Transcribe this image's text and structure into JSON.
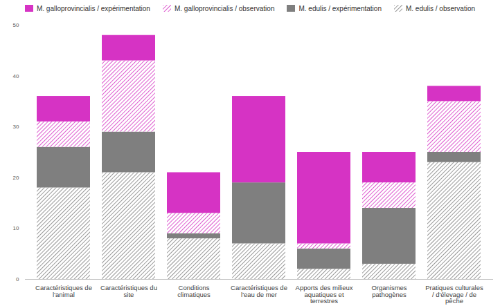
{
  "chart_data": {
    "type": "bar",
    "stacked": true,
    "categories": [
      "Caractéristiques de l'animal",
      "Caractéristiques du site",
      "Conditions climatiques",
      "Caractéristiques de l'eau de mer",
      "Apports des milieux aquatiques et terrestres",
      "Organismes pathogènes",
      "Pratiques culturales / d'élevage / de pêche"
    ],
    "series": [
      {
        "name": "M. edulis / observation",
        "color": "#7f7f7f",
        "line_style": "hatched",
        "values": [
          18,
          21,
          8,
          7,
          2,
          3,
          23
        ]
      },
      {
        "name": "M. edulis / expérimentation",
        "color": "#7f7f7f",
        "line_style": "solid",
        "values": [
          8,
          8,
          1,
          12,
          4,
          11,
          2
        ]
      },
      {
        "name": "M. galloprovincialis / observation",
        "color": "#d633c4",
        "line_style": "hatched",
        "values": [
          5,
          14,
          4,
          0,
          1,
          5,
          10
        ]
      },
      {
        "name": "M. galloprovincialis / expérimentation",
        "color": "#d633c4",
        "line_style": "solid",
        "values": [
          5,
          5,
          8,
          17,
          18,
          6,
          3
        ]
      }
    ],
    "ylim": [
      0,
      50
    ],
    "yticks": [
      0,
      10,
      20,
      30,
      40,
      50
    ],
    "grid": false,
    "legend": "top"
  }
}
